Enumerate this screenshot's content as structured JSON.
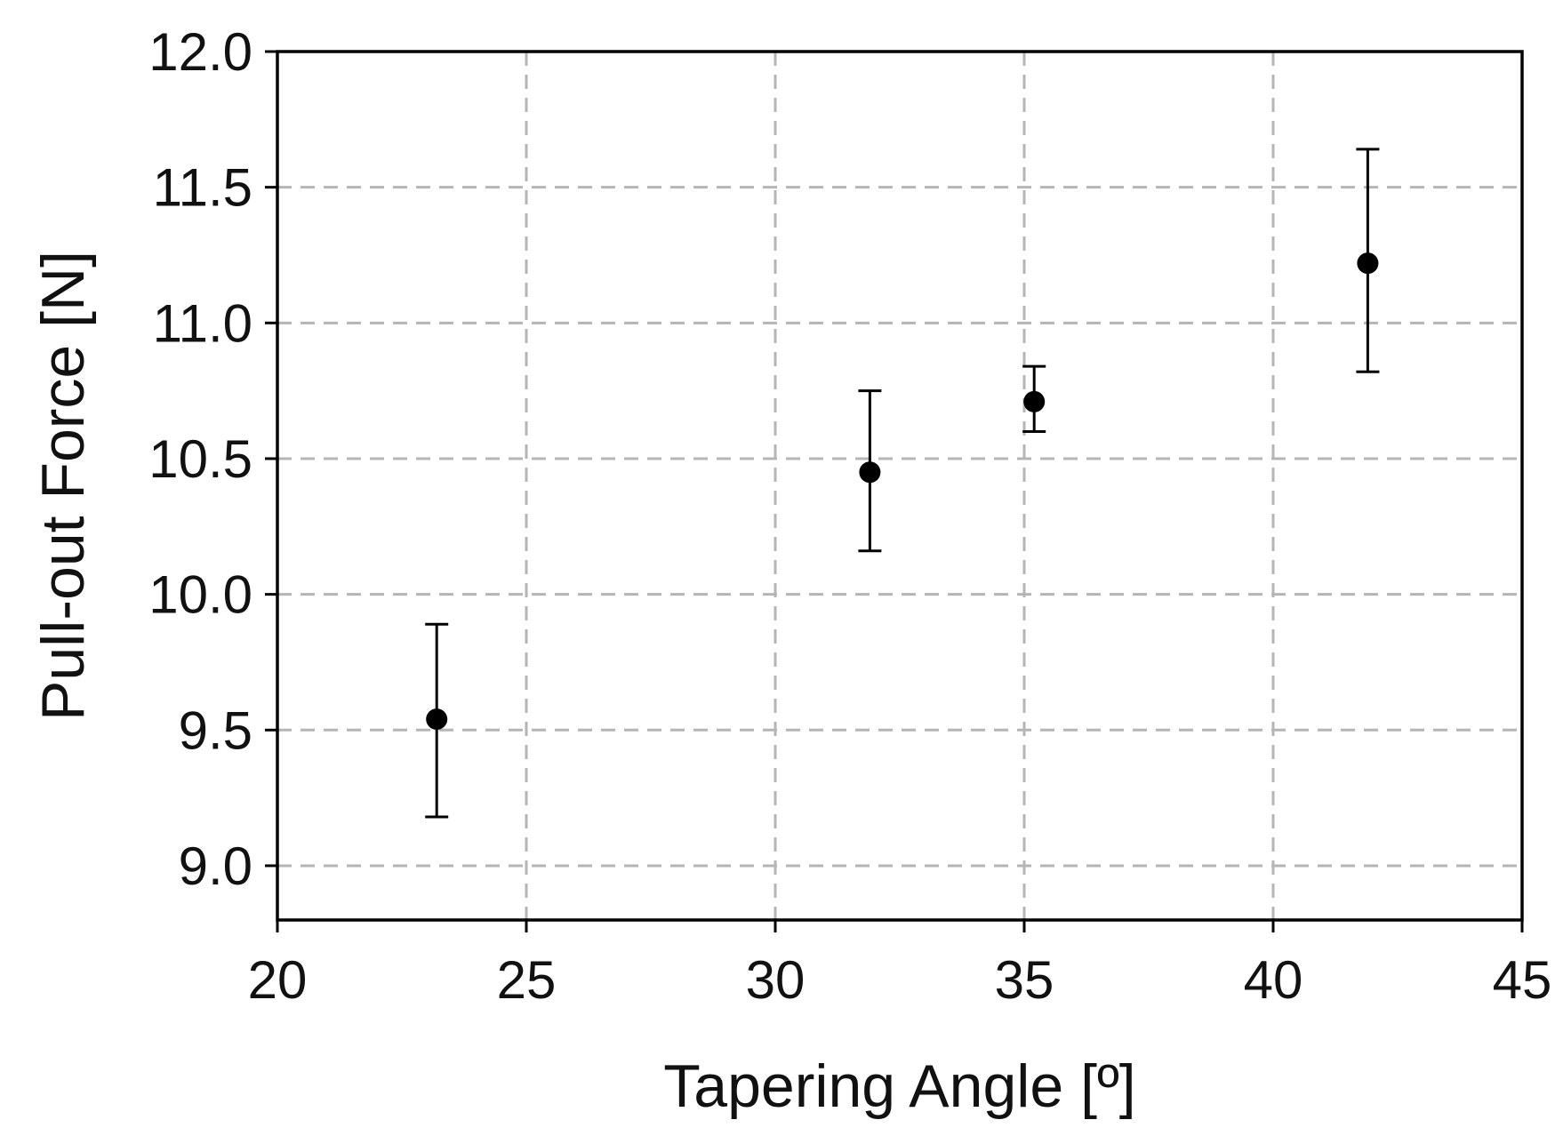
{
  "chart_data": {
    "type": "scatter",
    "title": "",
    "xlabel": "Tapering Angle [º]",
    "ylabel": "Pull-out Force [N]",
    "xlim": [
      20,
      45
    ],
    "ylim": [
      8.8,
      12.0
    ],
    "xticks": [
      20,
      25,
      30,
      35,
      40,
      45
    ],
    "yticks": [
      9.0,
      9.5,
      10.0,
      10.5,
      11.0,
      11.5,
      12.0
    ],
    "xtick_labels": [
      "20",
      "25",
      "30",
      "35",
      "40",
      "45"
    ],
    "ytick_labels": [
      "9.0",
      "9.5",
      "10.0",
      "10.5",
      "11.0",
      "11.5",
      "12.0"
    ],
    "grid": true,
    "legend": "none",
    "marker_color": "#000000",
    "grid_color": "#b5b5b5",
    "series": [
      {
        "points": [
          {
            "x": 23.2,
            "y": 9.54,
            "yerr_low": 9.18,
            "yerr_high": 9.89
          },
          {
            "x": 31.9,
            "y": 10.45,
            "yerr_low": 10.16,
            "yerr_high": 10.75
          },
          {
            "x": 35.2,
            "y": 10.71,
            "yerr_low": 10.6,
            "yerr_high": 10.84
          },
          {
            "x": 41.9,
            "y": 11.22,
            "yerr_low": 10.82,
            "yerr_high": 11.64
          }
        ]
      }
    ]
  }
}
